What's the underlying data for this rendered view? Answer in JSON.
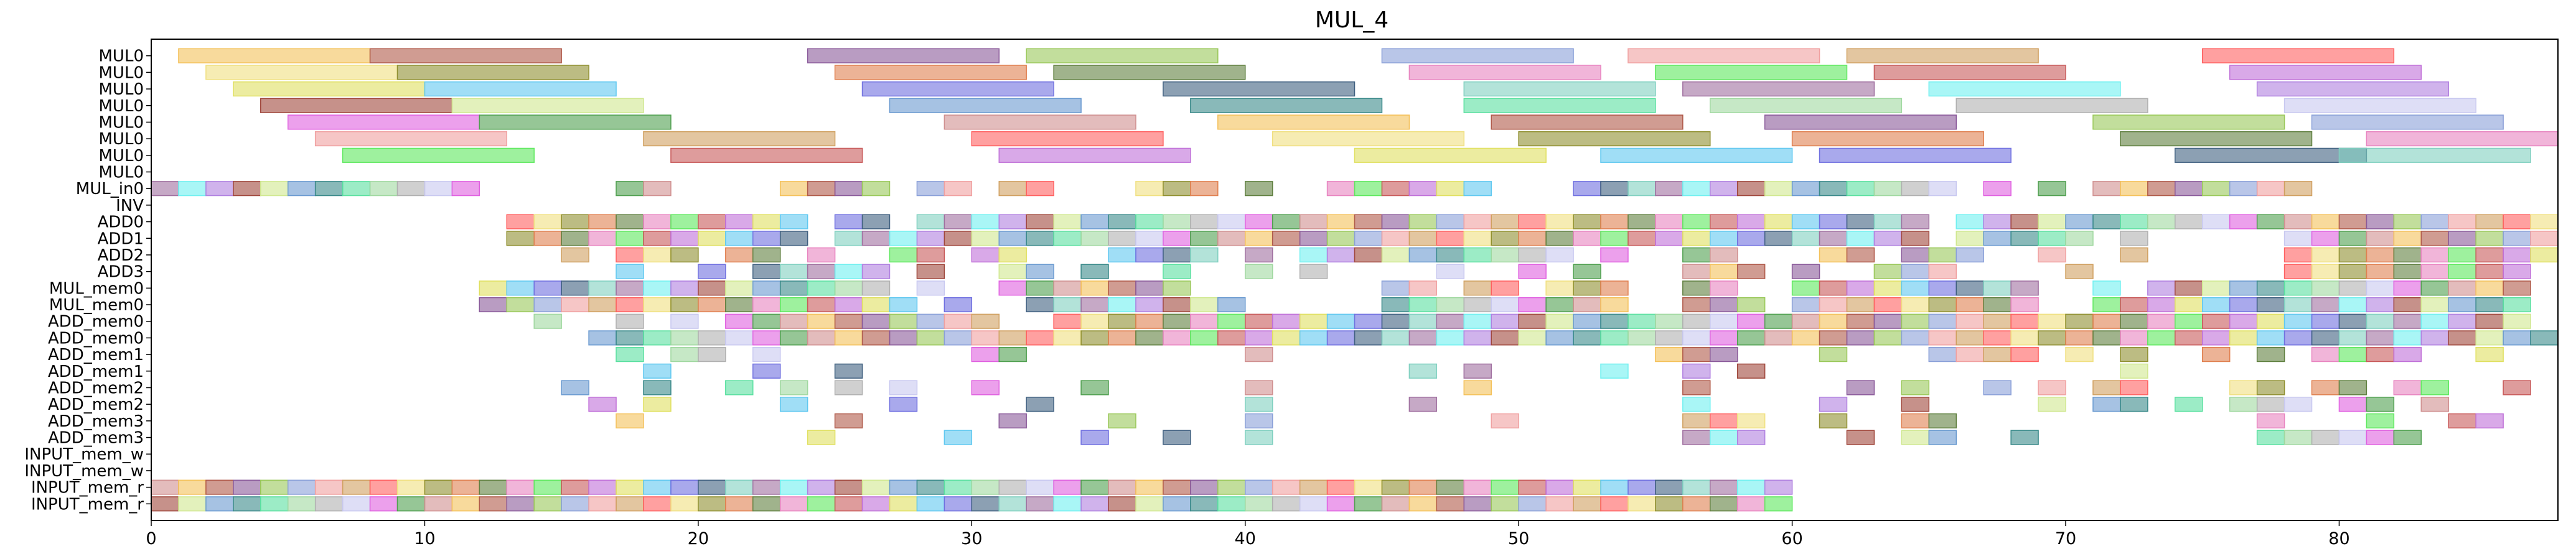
{
  "chart_data": {
    "type": "gantt",
    "title": "MUL_4",
    "xlabel": "",
    "ylabel": "",
    "xlim": [
      0,
      88
    ],
    "x_ticks": [
      0,
      10,
      20,
      30,
      40,
      50,
      60,
      70,
      80
    ],
    "grid": false,
    "legend": "none",
    "rows": [
      "MUL0",
      "MUL0",
      "MUL0",
      "MUL0",
      "MUL0",
      "MUL0",
      "MUL0",
      "MUL0",
      "MUL_in0",
      "INV",
      "ADD0",
      "ADD1",
      "ADD2",
      "ADD3",
      "MUL_mem0",
      "MUL_mem0",
      "ADD_mem0",
      "ADD_mem0",
      "ADD_mem1",
      "ADD_mem1",
      "ADD_mem2",
      "ADD_mem2",
      "ADD_mem3",
      "ADD_mem3",
      "INPUT_mem_w",
      "INPUT_mem_w",
      "INPUT_mem_r",
      "INPUT_mem_r"
    ],
    "palette": [
      "#f4c15a",
      "#e884c0",
      "#a0473c",
      "#b05a4a",
      "#5ee85e",
      "#d0e890",
      "#8a5a9a",
      "#c85a5a",
      "#6a9ad0",
      "#9ac85a",
      "#c070d8",
      "#3a8a8a",
      "#8aa0d8",
      "#e0e060",
      "#5ae0a0",
      "#f0a0a0",
      "#60c8f0",
      "#a0d8a0",
      "#d0a060",
      "#7070e0",
      "#b0b0b0",
      "#ff6060",
      "#406080",
      "#c8c8f0",
      "#f0e080",
      "#80d0c0",
      "#e060e0",
      "#909030",
      "#a070a0",
      "#50a050",
      "#e08050",
      "#70f0f0",
      "#d09090",
      "#608040",
      "#b080e0"
    ],
    "long_tasks": [
      [
        [
          1,
          8
        ],
        [
          8,
          15
        ],
        [
          24,
          31
        ],
        [
          32,
          39
        ],
        [
          45,
          52
        ],
        [
          54,
          61
        ],
        [
          62,
          69
        ],
        [
          75,
          82
        ]
      ],
      [
        [
          2,
          9
        ],
        [
          9,
          16
        ],
        [
          25,
          32
        ],
        [
          33,
          40
        ],
        [
          46,
          53
        ],
        [
          55,
          62
        ],
        [
          63,
          70
        ],
        [
          76,
          83
        ]
      ],
      [
        [
          3,
          10
        ],
        [
          10,
          17
        ],
        [
          26,
          33
        ],
        [
          37,
          44
        ],
        [
          48,
          55
        ],
        [
          56,
          63
        ],
        [
          65,
          72
        ],
        [
          77,
          84
        ]
      ],
      [
        [
          4,
          11
        ],
        [
          11,
          18
        ],
        [
          27,
          34
        ],
        [
          38,
          45
        ],
        [
          48,
          55
        ],
        [
          57,
          64
        ],
        [
          66,
          73
        ],
        [
          78,
          85
        ]
      ],
      [
        [
          5,
          12
        ],
        [
          12,
          19
        ],
        [
          29,
          36
        ],
        [
          39,
          46
        ],
        [
          49,
          56
        ],
        [
          59,
          66
        ],
        [
          71,
          78
        ],
        [
          79,
          86
        ]
      ],
      [
        [
          6,
          13
        ],
        [
          18,
          25
        ],
        [
          30,
          37
        ],
        [
          41,
          48
        ],
        [
          50,
          57
        ],
        [
          60,
          67
        ],
        [
          72,
          79
        ],
        [
          81,
          88
        ]
      ],
      [
        [
          7,
          14
        ],
        [
          19,
          26
        ],
        [
          31,
          38
        ],
        [
          44,
          51
        ],
        [
          53,
          60
        ],
        [
          61,
          68
        ],
        [
          74,
          81
        ],
        [
          80,
          87
        ]
      ]
    ],
    "short_tasks": {
      "8": [
        0,
        1,
        2,
        3,
        4,
        5,
        6,
        7,
        8,
        9,
        10,
        11,
        17,
        18,
        23,
        24,
        25,
        26,
        28,
        29,
        31,
        32,
        36,
        37,
        38,
        40,
        43,
        44,
        45,
        46,
        47,
        48,
        52,
        53,
        54,
        55,
        56,
        57,
        58,
        59,
        60,
        61,
        62,
        63,
        64,
        65,
        67,
        69,
        71,
        72,
        73,
        74,
        75,
        76,
        77,
        78
      ],
      "9": [],
      "10": [
        13,
        14,
        15,
        16,
        17,
        18,
        19,
        20,
        21,
        22,
        23,
        25,
        26,
        28,
        29,
        30,
        31,
        32,
        33,
        34,
        35,
        36,
        37,
        38,
        39,
        40,
        41,
        42,
        43,
        44,
        45,
        46,
        47,
        48,
        49,
        50,
        51,
        52,
        53,
        54,
        55,
        56,
        57,
        58,
        59,
        60,
        61,
        62,
        63,
        64,
        66,
        67,
        68,
        69,
        70,
        71,
        72,
        73,
        74,
        75,
        76,
        77,
        78,
        79,
        80,
        81,
        82,
        83,
        84,
        85,
        86,
        87
      ],
      "11": [
        13,
        14,
        15,
        16,
        17,
        18,
        19,
        20,
        21,
        22,
        23,
        25,
        26,
        27,
        28,
        29,
        30,
        31,
        32,
        33,
        34,
        35,
        36,
        37,
        38,
        39,
        40,
        41,
        42,
        43,
        44,
        45,
        46,
        47,
        48,
        49,
        50,
        51,
        52,
        53,
        54,
        55,
        56,
        57,
        58,
        59,
        60,
        61,
        62,
        63,
        64,
        66,
        67,
        68,
        69,
        70,
        72,
        78,
        79,
        80,
        81,
        82,
        83,
        84,
        85,
        86,
        87
      ],
      "12": [
        15,
        17,
        18,
        19,
        21,
        22,
        24,
        27,
        28,
        30,
        31,
        35,
        36,
        37,
        38,
        40,
        42,
        43,
        44,
        45,
        46,
        47,
        48,
        49,
        50,
        51,
        53,
        56,
        57,
        61,
        62,
        64,
        65,
        66,
        69,
        72,
        78,
        79,
        80,
        81,
        82,
        83,
        84,
        85,
        86,
        87
      ],
      "13": [
        17,
        20,
        22,
        23,
        24,
        25,
        26,
        28,
        31,
        32,
        34,
        37,
        40,
        42,
        47,
        50,
        52,
        56,
        57,
        58,
        60,
        63,
        64,
        65,
        70,
        78,
        79,
        80,
        81,
        82,
        83,
        84,
        85,
        86
      ],
      "14": [
        12,
        13,
        14,
        15,
        16,
        17,
        18,
        19,
        20,
        21,
        22,
        23,
        24,
        25,
        26,
        28,
        31,
        32,
        33,
        34,
        35,
        36,
        37,
        45,
        46,
        48,
        49,
        51,
        52,
        53,
        56,
        57,
        60,
        61,
        62,
        63,
        64,
        65,
        66,
        67,
        68,
        71,
        73,
        74,
        75,
        76,
        77,
        78,
        79,
        80,
        81,
        82,
        83,
        84,
        85,
        86
      ],
      "15": [
        12,
        13,
        14,
        15,
        16,
        17,
        18,
        19,
        20,
        21,
        22,
        23,
        24,
        25,
        26,
        27,
        29,
        32,
        33,
        34,
        35,
        36,
        37,
        38,
        39,
        45,
        46,
        47,
        48,
        49,
        50,
        51,
        52,
        53,
        56,
        57,
        58,
        60,
        61,
        62,
        63,
        64,
        65,
        66,
        67,
        68,
        71,
        72,
        73,
        74,
        75,
        76,
        77,
        78,
        79,
        80,
        81,
        82,
        83,
        84,
        85,
        86
      ],
      "16": [
        14,
        17,
        19,
        21,
        22,
        23,
        24,
        25,
        26,
        27,
        28,
        29,
        30,
        33,
        34,
        35,
        36,
        37,
        38,
        39,
        40,
        41,
        42,
        43,
        44,
        45,
        46,
        47,
        48,
        49,
        50,
        51,
        52,
        53,
        54,
        55,
        56,
        57,
        58,
        59,
        60,
        61,
        62,
        63,
        64,
        65,
        66,
        67,
        68,
        69,
        70,
        71,
        72,
        73,
        74,
        75,
        76,
        77,
        78,
        79,
        80,
        81,
        82,
        83,
        84,
        85,
        86
      ],
      "17": [
        16,
        17,
        18,
        19,
        20,
        21,
        22,
        23,
        24,
        25,
        26,
        27,
        28,
        29,
        30,
        31,
        32,
        33,
        34,
        35,
        36,
        37,
        38,
        39,
        40,
        41,
        42,
        43,
        44,
        45,
        46,
        47,
        48,
        49,
        50,
        51,
        52,
        53,
        54,
        55,
        56,
        57,
        58,
        59,
        60,
        61,
        62,
        63,
        64,
        65,
        66,
        67,
        68,
        69,
        70,
        71,
        72,
        73,
        74,
        75,
        76,
        77,
        78,
        79,
        80,
        81,
        82,
        83,
        84,
        85,
        86,
        87
      ],
      "18": [
        17,
        19,
        20,
        22,
        30,
        31,
        40,
        55,
        56,
        57,
        61,
        65,
        66,
        67,
        68,
        70,
        72,
        75,
        77,
        79,
        80,
        81,
        82,
        85
      ],
      "19": [
        18,
        22,
        25,
        46,
        48,
        53,
        56,
        58,
        72
      ],
      "20": [
        15,
        18,
        21,
        23,
        25,
        27,
        30,
        34,
        40,
        48,
        56,
        62,
        64,
        67,
        69,
        71,
        72,
        76,
        77,
        79,
        80,
        82,
        83,
        86
      ],
      "21": [
        16,
        18,
        23,
        27,
        32,
        40,
        46,
        56,
        61,
        64,
        69,
        71,
        72,
        74,
        76,
        77,
        78,
        80,
        81,
        83
      ],
      "22": [
        17,
        25,
        31,
        35,
        40,
        49,
        56,
        57,
        58,
        61,
        64,
        65,
        77,
        81,
        84,
        85
      ],
      "23": [
        24,
        29,
        34,
        37,
        40,
        56,
        57,
        58,
        62,
        64,
        65,
        68,
        77,
        78,
        79,
        80,
        81,
        82
      ],
      "24": [],
      "25": [],
      "26": [
        0,
        1,
        2,
        3,
        4,
        5,
        6,
        7,
        8,
        9,
        10,
        11,
        12,
        13,
        14,
        15,
        16,
        17,
        18,
        19,
        20,
        21,
        22,
        23,
        24,
        25,
        26,
        27,
        28,
        29,
        30,
        31,
        32,
        33,
        34,
        35,
        36,
        37,
        38,
        39,
        40,
        41,
        42,
        43,
        44,
        45,
        46,
        47,
        48,
        49,
        50,
        51,
        52,
        53,
        54,
        55,
        56,
        57,
        58,
        59
      ],
      "27": [
        0,
        1,
        2,
        3,
        4,
        5,
        6,
        7,
        8,
        9,
        10,
        11,
        12,
        13,
        14,
        15,
        16,
        17,
        18,
        19,
        20,
        21,
        22,
        23,
        24,
        25,
        26,
        27,
        28,
        29,
        30,
        31,
        32,
        33,
        34,
        35,
        36,
        37,
        38,
        39,
        40,
        41,
        42,
        43,
        44,
        45,
        46,
        47,
        48,
        49,
        50,
        51,
        52,
        53,
        54,
        55,
        56,
        57,
        58,
        59
      ]
    }
  }
}
